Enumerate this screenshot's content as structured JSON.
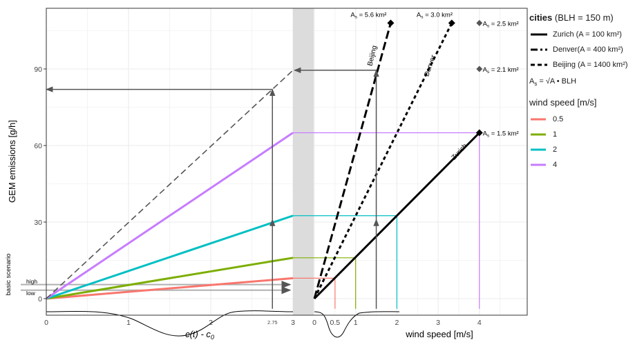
{
  "chart_data": {
    "type": "line",
    "ylabel": "GEM emissions [g/h]",
    "y_ticks": [
      "0",
      "30",
      "60",
      "90"
    ],
    "ylim": [
      -5,
      112
    ],
    "left_panel": {
      "xlabel_main": "c(t) - c",
      "xlabel_sub": "0",
      "xlim": [
        0,
        3
      ],
      "x_ticks": [
        "0",
        "1",
        "2",
        "2.75",
        "3"
      ],
      "series": [
        {
          "name": "0.5",
          "x": [
            0,
            3
          ],
          "y": [
            0,
            8
          ]
        },
        {
          "name": "1",
          "x": [
            0,
            3
          ],
          "y": [
            0,
            16
          ]
        },
        {
          "name": "2",
          "x": [
            0,
            3
          ],
          "y": [
            0,
            32.5
          ]
        },
        {
          "name": "4",
          "x": [
            0,
            3
          ],
          "y": [
            0,
            65
          ]
        },
        {
          "name": "",
          "x": [
            0,
            3
          ],
          "y": [
            0,
            89.5
          ],
          "style": "dashed"
        }
      ],
      "extraction_line_x": 2.75,
      "read_values": [
        82,
        89.5
      ],
      "basic_scenario": {
        "label": "basic scenario",
        "high_label": "high",
        "low_label": "low",
        "high": 5.5,
        "low": 3.3
      }
    },
    "right_panel": {
      "xlabel": "wind speed [m/s]",
      "xlim": [
        0,
        4.9
      ],
      "x_ticks": [
        "0",
        "0.5",
        "1",
        "2",
        "3",
        "4"
      ],
      "series": [
        {
          "name": "Zurich (A = 100 km²)",
          "label": "Zurich",
          "style": "solid",
          "x": [
            0,
            4
          ],
          "y": [
            0,
            65
          ]
        },
        {
          "name": "Denver(A = 400 km²)",
          "label": "Denver",
          "style": "dotdash",
          "x": [
            0,
            3.33
          ],
          "y": [
            0,
            108
          ]
        },
        {
          "name": "Beijing (A = 1400 km²)",
          "label": "Beijing",
          "style": "dashed",
          "x": [
            0,
            1.85
          ],
          "y": [
            0,
            108
          ]
        }
      ],
      "wind_speeds": [
        0.5,
        1,
        2,
        4
      ],
      "wind_emissions": [
        8,
        16,
        32.5,
        65
      ],
      "vertical_arrow_x": 1.5,
      "as_labels": [
        {
          "text": "A",
          "sub": "s",
          "rest": " = 5.6 km²"
        },
        {
          "text": "A",
          "sub": "s",
          "rest": " = 3.0 km²"
        },
        {
          "text": "A",
          "sub": "s",
          "rest": " = 2.5 km²"
        },
        {
          "text": "A",
          "sub": "s",
          "rest": " = 2.1 km²"
        },
        {
          "text": "A",
          "sub": "s",
          "rest": " = 1.5 km²"
        }
      ],
      "as_label_values": [
        108,
        108,
        108,
        90,
        65
      ]
    }
  },
  "legend": {
    "cities_title_bold": "cities",
    "cities_title_rest": " (BLH = 150 m)",
    "cities": [
      {
        "label": "Zurich (A = 100 km²)",
        "style": "solid"
      },
      {
        "label": "Denver(A = 400 km²)",
        "style": "dotdash"
      },
      {
        "label": "Beijing (A = 1400 km²)",
        "style": "dashed"
      }
    ],
    "formula": "A",
    "formula_sub": "s",
    "formula_rest": " = √A • BLH",
    "wind_title": "wind speed [m/s]",
    "wind": [
      {
        "label": "0.5",
        "color": "#F8766D"
      },
      {
        "label": "1",
        "color": "#7CAE00"
      },
      {
        "label": "2",
        "color": "#00BFC4"
      },
      {
        "label": "4",
        "color": "#C77CFF"
      }
    ]
  },
  "colors": {
    "arrow": "#555555",
    "grid": "#ebebeb",
    "band": "#dcdcdc",
    "basic": "#b0b0b0"
  }
}
